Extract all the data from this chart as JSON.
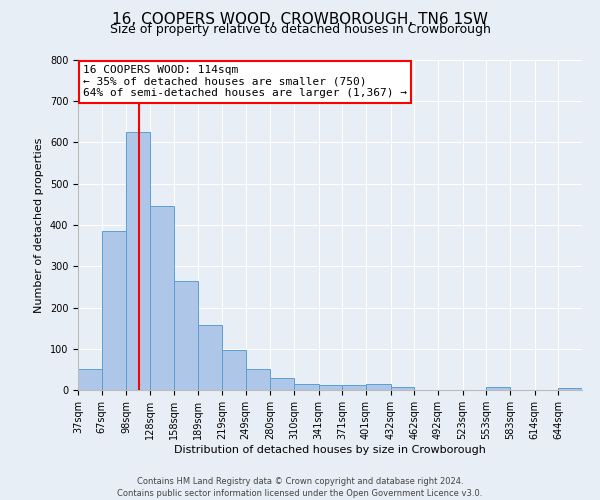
{
  "title": "16, COOPERS WOOD, CROWBOROUGH, TN6 1SW",
  "subtitle": "Size of property relative to detached houses in Crowborough",
  "xlabel": "Distribution of detached houses by size in Crowborough",
  "ylabel": "Number of detached properties",
  "bin_labels": [
    "37sqm",
    "67sqm",
    "98sqm",
    "128sqm",
    "158sqm",
    "189sqm",
    "219sqm",
    "249sqm",
    "280sqm",
    "310sqm",
    "341sqm",
    "371sqm",
    "401sqm",
    "432sqm",
    "462sqm",
    "492sqm",
    "523sqm",
    "553sqm",
    "583sqm",
    "614sqm",
    "644sqm"
  ],
  "bin_edges": [
    37,
    67,
    98,
    128,
    158,
    189,
    219,
    249,
    280,
    310,
    341,
    371,
    401,
    432,
    462,
    492,
    523,
    553,
    583,
    614,
    644
  ],
  "bar_heights": [
    50,
    385,
    625,
    445,
    265,
    157,
    98,
    52,
    30,
    15,
    12,
    12,
    15,
    8,
    0,
    0,
    0,
    8,
    0,
    0,
    5
  ],
  "bar_color": "#aec6e8",
  "bar_edge_color": "#5a9fd4",
  "vline_x": 114,
  "vline_color": "red",
  "annotation_title": "16 COOPERS WOOD: 114sqm",
  "annotation_line1": "← 35% of detached houses are smaller (750)",
  "annotation_line2": "64% of semi-detached houses are larger (1,367) →",
  "annotation_box_color": "white",
  "annotation_box_edge_color": "red",
  "ylim": [
    0,
    800
  ],
  "yticks": [
    0,
    100,
    200,
    300,
    400,
    500,
    600,
    700,
    800
  ],
  "background_color": "#e8eef5",
  "footer1": "Contains HM Land Registry data © Crown copyright and database right 2024.",
  "footer2": "Contains public sector information licensed under the Open Government Licence v3.0.",
  "title_fontsize": 11,
  "subtitle_fontsize": 9,
  "axis_label_fontsize": 8,
  "tick_fontsize": 7,
  "annotation_fontsize": 8,
  "footer_fontsize": 6
}
